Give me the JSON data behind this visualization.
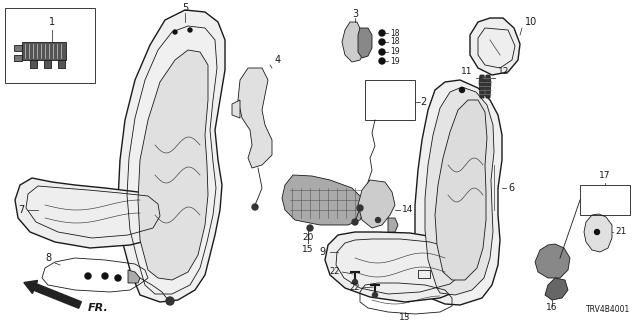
{
  "bg_color": "#ffffff",
  "line_color": "#1a1a1a",
  "catalog_code": "TRV4B4001",
  "figsize": [
    6.4,
    3.2
  ],
  "dpi": 100
}
